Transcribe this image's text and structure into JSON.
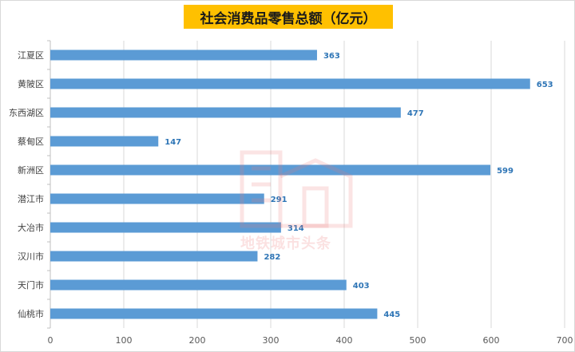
{
  "chart_data": {
    "type": "bar",
    "orientation": "horizontal",
    "title": "社会消费品零售总额（亿元）",
    "categories": [
      "江夏区",
      "黄陂区",
      "东西湖区",
      "蔡甸区",
      "新洲区",
      "潜江市",
      "大冶市",
      "汉川市",
      "天门市",
      "仙桃市"
    ],
    "values": [
      363,
      653,
      477,
      147,
      599,
      291,
      314,
      282,
      403,
      445
    ],
    "xlim": [
      0,
      700
    ],
    "xticks": [
      0,
      100,
      200,
      300,
      400,
      500,
      600,
      700
    ],
    "grid": "vertical",
    "data_labels": true,
    "bar_color": "#5b9bd5",
    "label_color": "#2e75b6",
    "title_background": "#ffc000"
  },
  "watermark": {
    "text": "地铁城市头条",
    "color": "#eb7878",
    "icon": "building-icon"
  }
}
